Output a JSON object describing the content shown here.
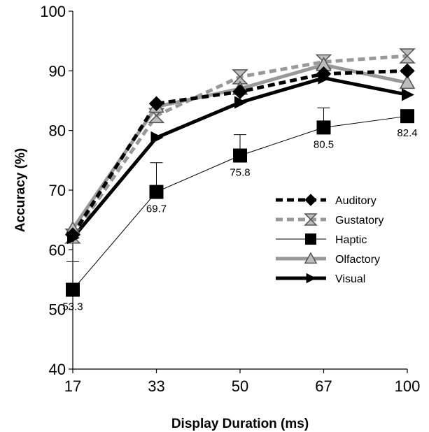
{
  "chart_data": {
    "type": "line",
    "title": "",
    "xlabel": "Display Duration (ms)",
    "ylabel": "Accuracy (%)",
    "categories": [
      "17",
      "33",
      "50",
      "67",
      "100"
    ],
    "ylim": [
      40,
      100
    ],
    "yticks": [
      "40",
      "50",
      "60",
      "70",
      "80",
      "90",
      "100"
    ],
    "grid": false,
    "legend_position": "right",
    "series": [
      {
        "name": "Auditory",
        "values": [
          62.5,
          84.5,
          86.5,
          89.5,
          90
        ],
        "color": "#000000",
        "style": "dashed",
        "marker": "diamond"
      },
      {
        "name": "Gustatory",
        "values": [
          62.3,
          82.5,
          89,
          91.5,
          92.5
        ],
        "color": "#999999",
        "style": "dashed",
        "marker": "hourglass"
      },
      {
        "name": "Haptic",
        "values": [
          53.3,
          69.7,
          75.8,
          80.5,
          82.4
        ],
        "color": "#000000",
        "style": "thin",
        "marker": "square",
        "error_plus": [
          4.7,
          4.9,
          3.5,
          3.3,
          0
        ]
      },
      {
        "name": "Olfactory",
        "values": [
          63.5,
          84,
          87,
          91,
          88
        ],
        "color": "#999999",
        "style": "solid-thick",
        "marker": "triangle"
      },
      {
        "name": "Visual",
        "values": [
          62,
          78.8,
          84.7,
          88.8,
          86
        ],
        "color": "#000000",
        "style": "solid-thick",
        "marker": "arrow-right"
      }
    ],
    "data_labels": [
      {
        "series": "Haptic",
        "index": 0,
        "text": "53.3"
      },
      {
        "series": "Haptic",
        "index": 1,
        "text": "69.7"
      },
      {
        "series": "Haptic",
        "index": 2,
        "text": "75.8"
      },
      {
        "series": "Haptic",
        "index": 3,
        "text": "80.5"
      },
      {
        "series": "Haptic",
        "index": 4,
        "text": "82.4"
      }
    ]
  }
}
